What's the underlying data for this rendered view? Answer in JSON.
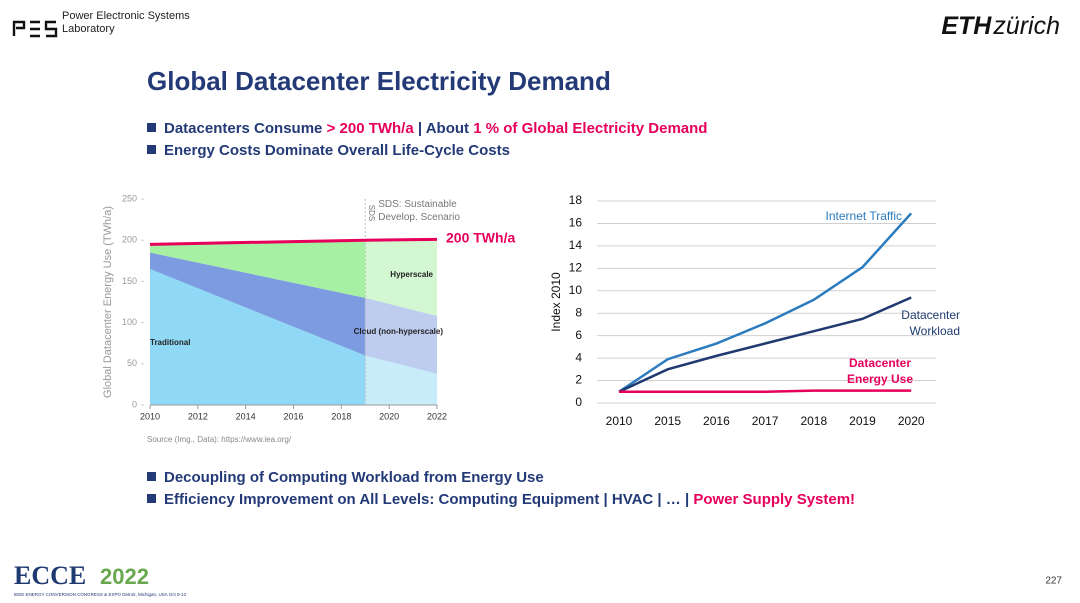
{
  "header": {
    "lab_line1": "Power Electronic Systems",
    "lab_line2": "Laboratory",
    "eth": "ETH",
    "zurich": "zürich"
  },
  "title": "Global Datacenter Electricity Demand",
  "highlight_color": "#e6005c",
  "bullets_top": [
    [
      {
        "text": "Datacenters Consume"
      },
      {
        "text": "> 200 TWh/a",
        "highlight": true
      },
      {
        "text": "| About"
      },
      {
        "text": "1 %",
        "highlight": true
      },
      {
        "text": "of Global Electricity Demand",
        "highlight": true
      }
    ],
    [
      {
        "text": "Energy Costs Dominate Overall Life-Cycle Costs"
      }
    ]
  ],
  "bullets_bottom": [
    [
      {
        "text": "Decoupling of Computing Workload from Energy Use"
      }
    ],
    [
      {
        "text": "Efficiency Improvement on All Levels: Computing Equipment | HVAC | … |"
      },
      {
        "text": "Power Supply System!",
        "highlight": true
      }
    ]
  ],
  "chart_data": [
    {
      "type": "area",
      "stacked": true,
      "ylabel": "Global Datacenter Energy Use (TWh/a)",
      "x": [
        2010,
        2019,
        2022
      ],
      "xlim": [
        2010,
        2022
      ],
      "xticks": [
        2010,
        2012,
        2014,
        2016,
        2018,
        2020,
        2022
      ],
      "ylim": [
        0,
        250
      ],
      "yticks": [
        0,
        50,
        100,
        150,
        200,
        250
      ],
      "projection_from": 2019,
      "series": [
        {
          "name": "Traditional",
          "color": "#8fd9f6",
          "values": [
            165,
            60,
            38
          ]
        },
        {
          "name": "Cloud (non-hyperscale)",
          "color": "#7d9be0",
          "values": [
            20,
            70,
            70
          ]
        },
        {
          "name": "Hyperscale",
          "color": "#a6f0a4",
          "values": [
            10,
            70,
            93
          ]
        }
      ],
      "marker_line": {
        "x": 2019,
        "label": "SDS",
        "note": "SDS: Sustainable Develop. Scenario"
      },
      "total_line": {
        "color": "#e6005c",
        "values": [
          195,
          200,
          201
        ],
        "label": "200 TWh/a"
      },
      "source": "Source (Img., Data): https://www.iea.org/"
    },
    {
      "type": "line",
      "ylabel": "Index 2010",
      "categories": [
        "2010",
        "2015",
        "2016",
        "2017",
        "2018",
        "2019",
        "2020"
      ],
      "ylim": [
        0,
        18
      ],
      "yticks": [
        0,
        2,
        4,
        6,
        8,
        10,
        12,
        14,
        16,
        18
      ],
      "grid": true,
      "series": [
        {
          "name": "Internet Traffic",
          "color": "#2b7bbf",
          "values": [
            1,
            3.9,
            5.3,
            7.1,
            9.2,
            12.1,
            16.9
          ]
        },
        {
          "name": "Datacenter Workload",
          "color": "#1f3a70",
          "values": [
            1,
            3.0,
            4.2,
            5.3,
            6.4,
            7.5,
            9.4
          ]
        },
        {
          "name": "Datacenter Energy Use",
          "color": "#e6005c",
          "values": [
            1,
            1,
            1,
            1,
            1.1,
            1.1,
            1.1
          ]
        }
      ]
    }
  ],
  "footer": {
    "ecce": "ECCE",
    "year": "2022",
    "tagline": "IEEE ENERGY CONVERSION CONGRESS & EXPO Detroit, Michigan, USA Oct 9-13",
    "page": "227"
  }
}
